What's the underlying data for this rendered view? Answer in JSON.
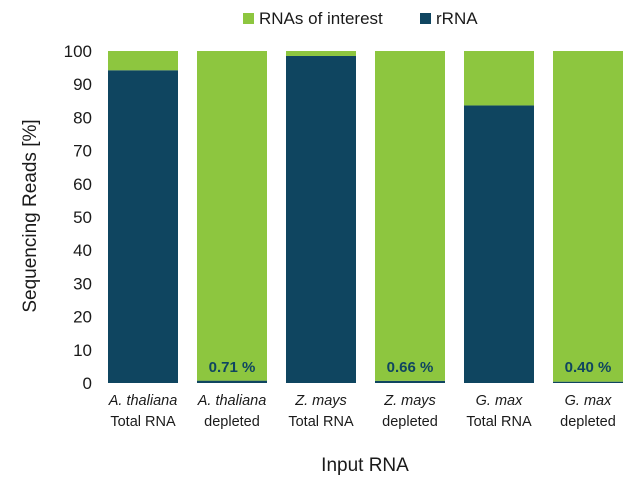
{
  "chart_data": {
    "type": "bar",
    "stacked": true,
    "title": "",
    "xlabel": "Input RNA",
    "ylabel": "Sequencing Reads [%]",
    "ylim": [
      0,
      100
    ],
    "yticks": [
      0,
      10,
      20,
      30,
      40,
      50,
      60,
      70,
      80,
      90,
      100
    ],
    "grid": false,
    "legend_position": "top",
    "categories": [
      {
        "species": "A. thaliana",
        "condition": "Total RNA"
      },
      {
        "species": "A. thaliana",
        "condition": "depleted"
      },
      {
        "species": "Z. mays",
        "condition": "Total RNA"
      },
      {
        "species": "Z. mays",
        "condition": "depleted"
      },
      {
        "species": "G. max",
        "condition": "Total RNA"
      },
      {
        "species": "G. max",
        "condition": "depleted"
      }
    ],
    "series": [
      {
        "name": "rRNA",
        "color": "#0f4560",
        "values": [
          94.2,
          0.71,
          98.5,
          0.66,
          83.6,
          0.4
        ]
      },
      {
        "name": "RNAs of interest",
        "color": "#8dc63f",
        "values": [
          5.8,
          99.29,
          1.5,
          99.34,
          16.4,
          99.6
        ]
      }
    ],
    "legend": [
      {
        "name": "RNAs of interest",
        "color": "#8dc63f"
      },
      {
        "name": "rRNA",
        "color": "#0f4560"
      }
    ],
    "annotations": [
      {
        "category_index": 1,
        "text": "0.71 %"
      },
      {
        "category_index": 3,
        "text": "0.66 %"
      },
      {
        "category_index": 5,
        "text": "0.40 %"
      }
    ]
  }
}
